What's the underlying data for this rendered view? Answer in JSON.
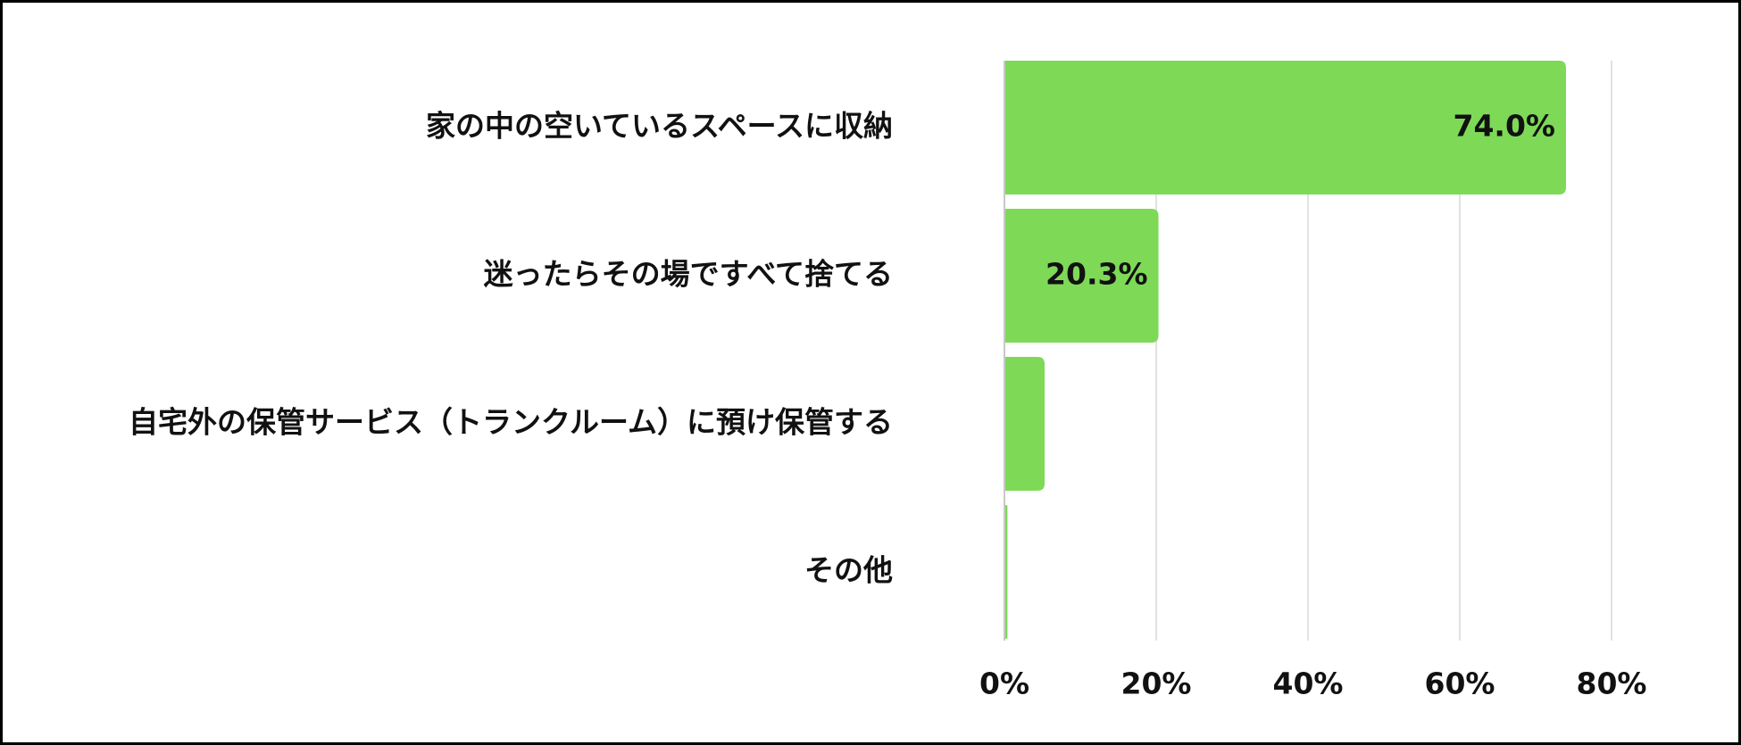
{
  "chart_data": {
    "type": "bar",
    "orientation": "horizontal",
    "title": "",
    "xlabel": "",
    "ylabel": "",
    "categories": [
      "家の中の空いているスペースに収納",
      "迷ったらその場ですべて捨てる",
      "自宅外の保管サービス（トランクルーム）に預け保管する",
      "その他"
    ],
    "values": [
      74.0,
      20.3,
      5.3,
      0.4
    ],
    "data_labels": [
      "74.0%",
      "20.3%",
      "",
      ""
    ],
    "xlim": [
      0,
      80
    ],
    "ticks": [
      0,
      20,
      40,
      60,
      80
    ],
    "tick_labels": [
      "0%",
      "20%",
      "40%",
      "60%",
      "80%"
    ],
    "grid": true,
    "legend": "none",
    "colors": {
      "bar": "#7ed957",
      "grid": "#d9d9d9",
      "axis": "#c8c8c8",
      "text": "#111111",
      "border": "#000000"
    }
  }
}
